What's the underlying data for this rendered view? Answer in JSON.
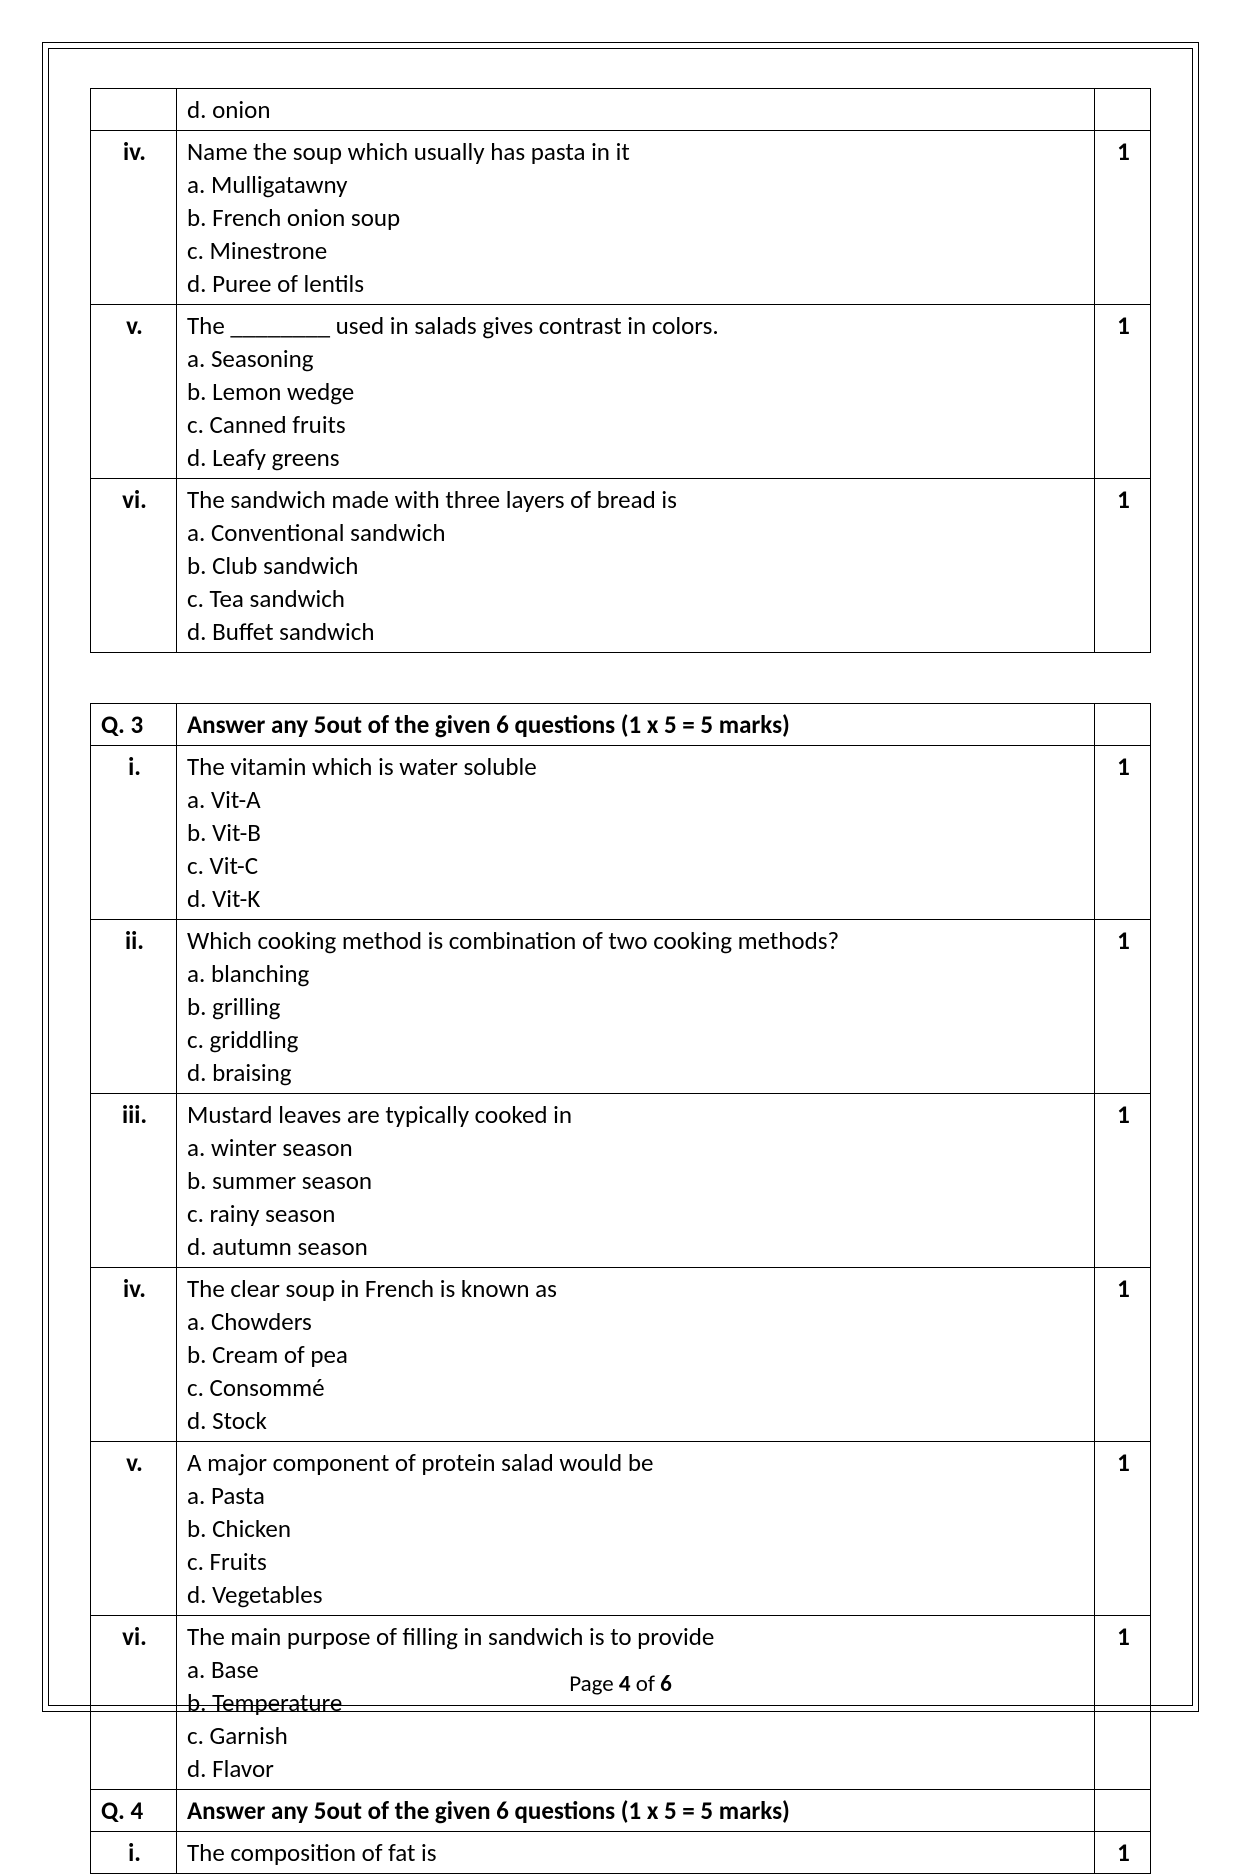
{
  "table1": {
    "rows": [
      {
        "num": "",
        "text_lines": [
          "d. onion"
        ],
        "marks": ""
      },
      {
        "num": "iv.",
        "text_lines": [
          "Name the soup which usually has pasta in it",
          "a. Mulligatawny",
          "b. French onion soup",
          "c. Minestrone",
          "d. Puree of lentils"
        ],
        "marks": "1"
      },
      {
        "num": "v.",
        "text_lines": [
          "The ________ used in salads gives contrast in colors.",
          "a. Seasoning",
          "b. Lemon wedge",
          "c. Canned fruits",
          "d. Leafy greens"
        ],
        "marks": "1"
      },
      {
        "num": "vi.",
        "text_lines": [
          "The sandwich made with three layers of bread is",
          "a. Conventional sandwich",
          "b. Club sandwich",
          "c. Tea sandwich",
          "d. Buffet sandwich"
        ],
        "marks": "1"
      }
    ]
  },
  "table2": {
    "rows": [
      {
        "num": "Q. 3",
        "header": true,
        "text_lines": [
          "Answer any 5out of the given 6 questions (1 x 5 = 5 marks)"
        ],
        "marks": ""
      },
      {
        "num": "i.",
        "text_lines": [
          "The vitamin which is water soluble",
          "a. Vit-A",
          "b. Vit-B",
          "c. Vit-C",
          "d. Vit-K"
        ],
        "marks": "1"
      },
      {
        "num": "ii.",
        "text_lines": [
          "Which cooking method is combination of two cooking methods?",
          "a. blanching",
          "b. grilling",
          "c. griddling",
          "d. braising"
        ],
        "marks": "1"
      },
      {
        "num": "iii.",
        "text_lines": [
          "Mustard leaves are typically cooked in",
          "a. winter season",
          "b. summer season",
          "c. rainy season",
          "d.  autumn season"
        ],
        "marks": "1"
      },
      {
        "num": "iv.",
        "text_lines": [
          "The clear soup in French is known as",
          "a. Chowders",
          "b. Cream of pea",
          "c. Consommé",
          "d. Stock"
        ],
        "marks": "1"
      },
      {
        "num": "v.",
        "text_lines": [
          "A major component of protein salad would be",
          "a. Pasta",
          "b. Chicken",
          "c. Fruits",
          "d. Vegetables"
        ],
        "marks": "1"
      },
      {
        "num": "vi.",
        "text_lines": [
          "The main purpose of filling in sandwich is to provide",
          "a. Base",
          "b. Temperature",
          "c. Garnish",
          "d. Flavor"
        ],
        "marks": "1"
      },
      {
        "num": "Q. 4",
        "header": true,
        "text_lines": [
          "Answer any 5out of the given 6 questions (1 x 5 = 5 marks)"
        ],
        "marks": ""
      },
      {
        "num": "i.",
        "text_lines": [
          "The composition of fat is"
        ],
        "marks": "1"
      }
    ]
  },
  "footer": {
    "prefix": "Page ",
    "current": "4",
    "mid": " of ",
    "total": "6"
  }
}
